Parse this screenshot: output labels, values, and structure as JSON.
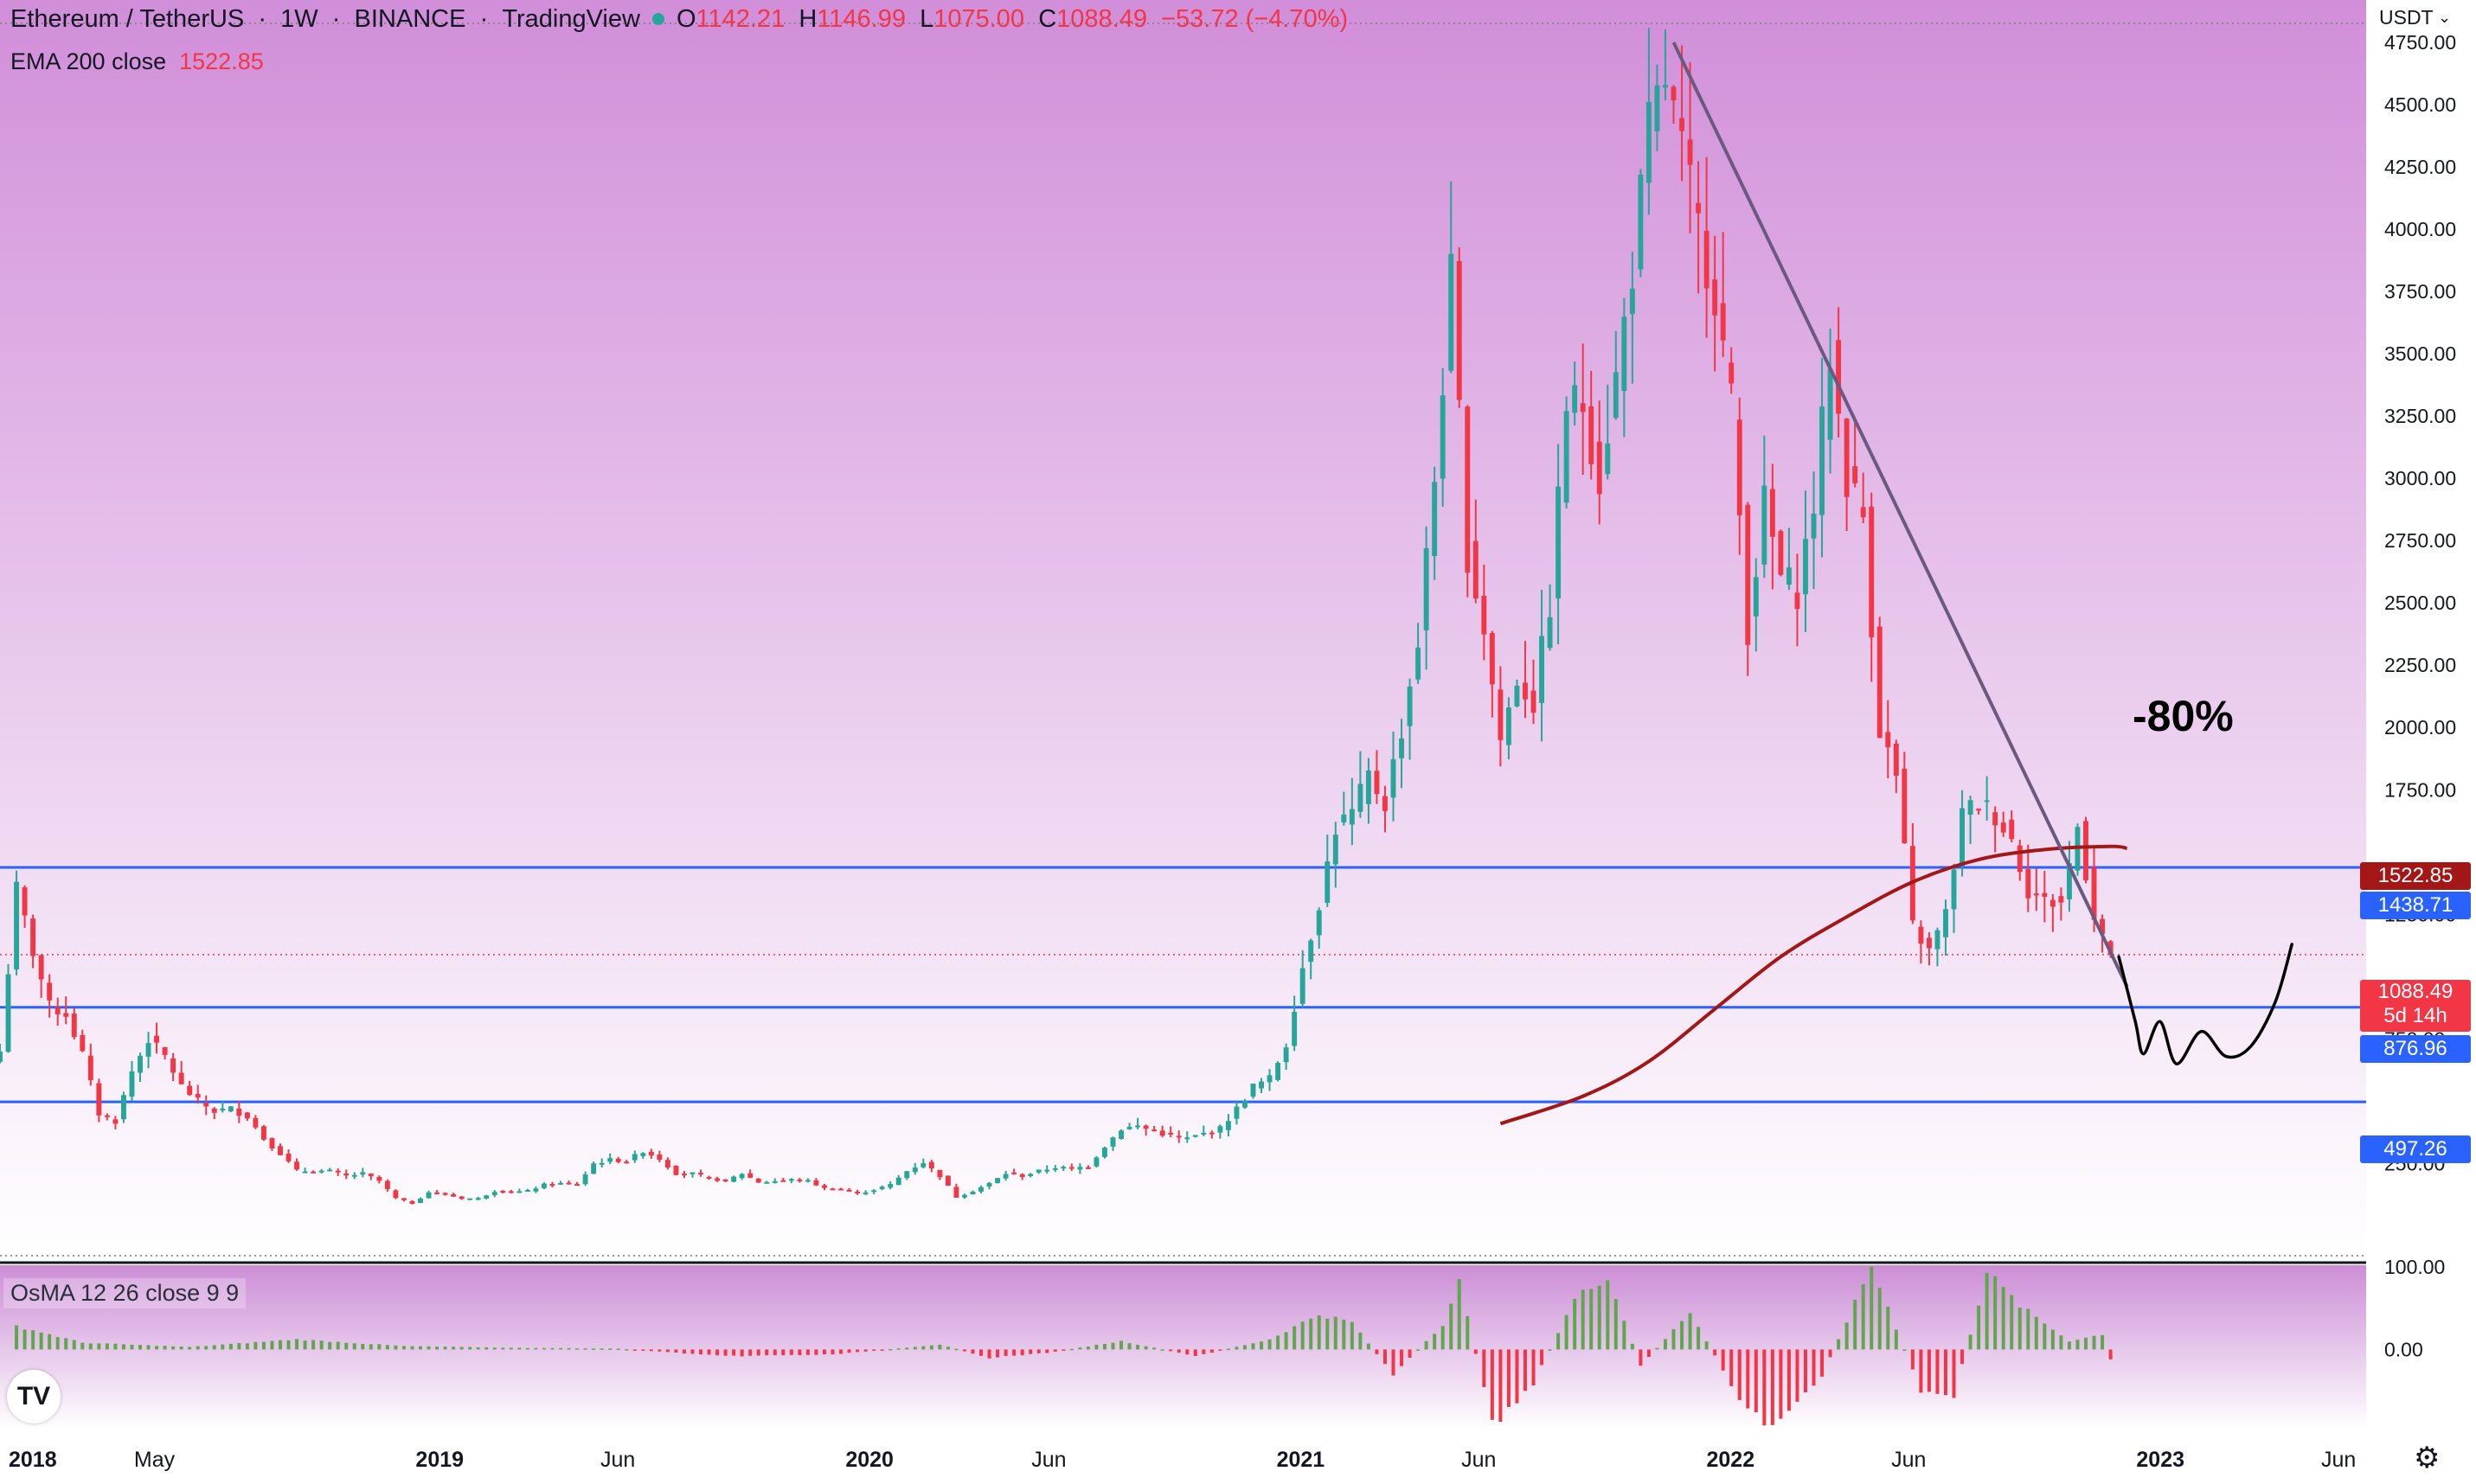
{
  "header": {
    "symbol": "Ethereum / TetherUS",
    "interval": "1W",
    "exchange": "BINANCE",
    "source": "TradingView",
    "open_label": "O",
    "open_value": "1142.21",
    "high_label": "H",
    "high_value": "1146.99",
    "low_label": "L",
    "low_value": "1075.00",
    "close_label": "C",
    "close_value": "1088.49",
    "change": "−53.72 (−4.70%)",
    "ema_label": "EMA 200 close",
    "ema_value": "1522.85"
  },
  "price_axis": {
    "currency": "USDT",
    "ticks": [
      "4750.00",
      "4500.00",
      "4250.00",
      "4000.00",
      "3750.00",
      "3500.00",
      "3250.00",
      "3000.00",
      "2750.00",
      "2500.00",
      "2250.00",
      "2000.00",
      "1750.00",
      "1250.00",
      "750.00",
      "250.00"
    ]
  },
  "time_axis": {
    "labels": [
      "2018",
      "May",
      "2019",
      "Jun",
      "2020",
      "Jun",
      "2021",
      "Jun",
      "2022",
      "Jun",
      "2023",
      "Jun"
    ],
    "bold": [
      "2018",
      "2019",
      "2020",
      "2021",
      "2022",
      "2023"
    ]
  },
  "price_labels": {
    "ema": "1522.85",
    "level_top": "1438.71",
    "current_price": "1088.49",
    "countdown": "5d 14h",
    "level_mid": "876.96",
    "level_low": "497.26"
  },
  "annotation": {
    "text": "-80%"
  },
  "osma": {
    "label": "OsMA 12 26 close 9 9",
    "ticks": [
      "100.00",
      "0.00"
    ]
  },
  "colors": {
    "up": "#26a69a",
    "down": "#f23645",
    "osma_up": "#5fa84a",
    "osma_down": "#f23645",
    "ema": "#a31717",
    "levels": "#2962ff",
    "trendline": "#6a5a80",
    "projection": "#000000",
    "bg_top": "#d18ed9",
    "bg_bottom": "#ffffff"
  },
  "icons": {
    "logo": "tradingview-logo-icon",
    "settings": "gear-icon",
    "indicator_dot": "status-dot-icon"
  },
  "chart_data": {
    "type": "candlestick",
    "title": "Ethereum / TetherUS",
    "interval": "1W",
    "ylabel": "USDT",
    "ylim": [
      -120,
      4920
    ],
    "xlim": [
      "2017-12-25",
      "2023-06-26"
    ],
    "grid": false,
    "current": {
      "open": 1142.21,
      "high": 1146.99,
      "low": 1075.0,
      "close": 1088.49
    },
    "weekly_close_path": [
      {
        "date": "2017-12-25",
        "close": 700
      },
      {
        "date": "2018-01-08",
        "close": 1350
      },
      {
        "date": "2018-01-22",
        "close": 1100
      },
      {
        "date": "2018-02-05",
        "close": 880
      },
      {
        "date": "2018-02-19",
        "close": 850
      },
      {
        "date": "2018-03-05",
        "close": 690
      },
      {
        "date": "2018-03-19",
        "close": 450
      },
      {
        "date": "2018-04-02",
        "close": 420
      },
      {
        "date": "2018-04-16",
        "close": 620
      },
      {
        "date": "2018-04-30",
        "close": 750
      },
      {
        "date": "2018-05-14",
        "close": 680
      },
      {
        "date": "2018-05-28",
        "close": 560
      },
      {
        "date": "2018-06-11",
        "close": 500
      },
      {
        "date": "2018-06-25",
        "close": 460
      },
      {
        "date": "2018-07-09",
        "close": 470
      },
      {
        "date": "2018-07-23",
        "close": 440
      },
      {
        "date": "2018-08-06",
        "close": 350
      },
      {
        "date": "2018-08-20",
        "close": 290
      },
      {
        "date": "2018-09-03",
        "close": 220
      },
      {
        "date": "2018-09-17",
        "close": 220
      },
      {
        "date": "2018-10-01",
        "close": 220
      },
      {
        "date": "2018-10-15",
        "close": 200
      },
      {
        "date": "2018-10-29",
        "close": 210
      },
      {
        "date": "2018-11-12",
        "close": 180
      },
      {
        "date": "2018-11-26",
        "close": 110
      },
      {
        "date": "2018-12-10",
        "close": 90
      },
      {
        "date": "2018-12-24",
        "close": 135
      },
      {
        "date": "2019-01-07",
        "close": 125
      },
      {
        "date": "2019-01-21",
        "close": 110
      },
      {
        "date": "2019-02-04",
        "close": 110
      },
      {
        "date": "2019-02-18",
        "close": 140
      },
      {
        "date": "2019-03-04",
        "close": 135
      },
      {
        "date": "2019-03-18",
        "close": 140
      },
      {
        "date": "2019-04-01",
        "close": 165
      },
      {
        "date": "2019-04-15",
        "close": 170
      },
      {
        "date": "2019-04-29",
        "close": 165
      },
      {
        "date": "2019-05-13",
        "close": 250
      },
      {
        "date": "2019-05-27",
        "close": 265
      },
      {
        "date": "2019-06-10",
        "close": 260
      },
      {
        "date": "2019-06-24",
        "close": 300
      },
      {
        "date": "2019-07-08",
        "close": 270
      },
      {
        "date": "2019-07-22",
        "close": 210
      },
      {
        "date": "2019-08-05",
        "close": 210
      },
      {
        "date": "2019-08-19",
        "close": 190
      },
      {
        "date": "2019-09-02",
        "close": 180
      },
      {
        "date": "2019-09-16",
        "close": 210
      },
      {
        "date": "2019-09-30",
        "close": 175
      },
      {
        "date": "2019-10-14",
        "close": 180
      },
      {
        "date": "2019-10-28",
        "close": 185
      },
      {
        "date": "2019-11-11",
        "close": 180
      },
      {
        "date": "2019-11-25",
        "close": 150
      },
      {
        "date": "2019-12-09",
        "close": 145
      },
      {
        "date": "2019-12-23",
        "close": 130
      },
      {
        "date": "2020-01-06",
        "close": 145
      },
      {
        "date": "2020-01-20",
        "close": 165
      },
      {
        "date": "2020-02-03",
        "close": 220
      },
      {
        "date": "2020-02-17",
        "close": 255
      },
      {
        "date": "2020-03-02",
        "close": 200
      },
      {
        "date": "2020-03-16",
        "close": 115
      },
      {
        "date": "2020-03-30",
        "close": 140
      },
      {
        "date": "2020-04-13",
        "close": 170
      },
      {
        "date": "2020-04-27",
        "close": 210
      },
      {
        "date": "2020-05-11",
        "close": 200
      },
      {
        "date": "2020-05-25",
        "close": 220
      },
      {
        "date": "2020-06-08",
        "close": 235
      },
      {
        "date": "2020-06-22",
        "close": 230
      },
      {
        "date": "2020-07-06",
        "close": 240
      },
      {
        "date": "2020-07-20",
        "close": 320
      },
      {
        "date": "2020-08-03",
        "close": 390
      },
      {
        "date": "2020-08-17",
        "close": 400
      },
      {
        "date": "2020-08-31",
        "close": 380
      },
      {
        "date": "2020-09-14",
        "close": 360
      },
      {
        "date": "2020-09-28",
        "close": 350
      },
      {
        "date": "2020-10-12",
        "close": 370
      },
      {
        "date": "2020-10-26",
        "close": 390
      },
      {
        "date": "2020-11-09",
        "close": 470
      },
      {
        "date": "2020-11-23",
        "close": 560
      },
      {
        "date": "2020-12-07",
        "close": 590
      },
      {
        "date": "2020-12-21",
        "close": 730
      },
      {
        "date": "2021-01-04",
        "close": 1040
      },
      {
        "date": "2021-01-18",
        "close": 1300
      },
      {
        "date": "2021-02-01",
        "close": 1600
      },
      {
        "date": "2021-02-15",
        "close": 1650
      },
      {
        "date": "2021-03-01",
        "close": 1800
      },
      {
        "date": "2021-03-15",
        "close": 1700
      },
      {
        "date": "2021-03-29",
        "close": 2000
      },
      {
        "date": "2021-04-12",
        "close": 2350
      },
      {
        "date": "2021-04-26",
        "close": 3000
      },
      {
        "date": "2021-05-10",
        "close": 3800
      },
      {
        "date": "2021-05-24",
        "close": 2700
      },
      {
        "date": "2021-06-07",
        "close": 2400
      },
      {
        "date": "2021-06-21",
        "close": 1950
      },
      {
        "date": "2021-07-05",
        "close": 2200
      },
      {
        "date": "2021-07-19",
        "close": 2100
      },
      {
        "date": "2021-08-02",
        "close": 2500
      },
      {
        "date": "2021-08-16",
        "close": 3300
      },
      {
        "date": "2021-08-30",
        "close": 3300
      },
      {
        "date": "2021-09-13",
        "close": 3000
      },
      {
        "date": "2021-09-27",
        "close": 3400
      },
      {
        "date": "2021-10-11",
        "close": 3850
      },
      {
        "date": "2021-10-25",
        "close": 4400
      },
      {
        "date": "2021-11-08",
        "close": 4600
      },
      {
        "date": "2021-11-22",
        "close": 4300
      },
      {
        "date": "2021-12-06",
        "close": 4000
      },
      {
        "date": "2021-12-20",
        "close": 3750
      },
      {
        "date": "2022-01-03",
        "close": 3300
      },
      {
        "date": "2022-01-17",
        "close": 2400
      },
      {
        "date": "2022-01-31",
        "close": 2900
      },
      {
        "date": "2022-02-14",
        "close": 2600
      },
      {
        "date": "2022-02-28",
        "close": 2550
      },
      {
        "date": "2022-03-14",
        "close": 2900
      },
      {
        "date": "2022-03-28",
        "close": 3500
      },
      {
        "date": "2022-04-11",
        "close": 3000
      },
      {
        "date": "2022-04-25",
        "close": 2850
      },
      {
        "date": "2022-05-09",
        "close": 2000
      },
      {
        "date": "2022-05-23",
        "close": 1800
      },
      {
        "date": "2022-06-06",
        "close": 1200
      },
      {
        "date": "2022-06-20",
        "close": 1100
      },
      {
        "date": "2022-07-04",
        "close": 1250
      },
      {
        "date": "2022-07-18",
        "close": 1650
      },
      {
        "date": "2022-08-01",
        "close": 1700
      },
      {
        "date": "2022-08-15",
        "close": 1650
      },
      {
        "date": "2022-08-29",
        "close": 1550
      },
      {
        "date": "2022-09-12",
        "close": 1350
      },
      {
        "date": "2022-09-26",
        "close": 1300
      },
      {
        "date": "2022-10-10",
        "close": 1300
      },
      {
        "date": "2022-10-24",
        "close": 1600
      },
      {
        "date": "2022-11-07",
        "close": 1250
      },
      {
        "date": "2022-11-21",
        "close": 1088.49
      }
    ],
    "ema200": {
      "name": "EMA 200 close",
      "points": [
        {
          "date": "2021-06-21",
          "value": 410
        },
        {
          "date": "2021-08-30",
          "value": 520
        },
        {
          "date": "2021-10-25",
          "value": 660
        },
        {
          "date": "2021-12-20",
          "value": 870
        },
        {
          "date": "2022-02-14",
          "value": 1080
        },
        {
          "date": "2022-04-11",
          "value": 1240
        },
        {
          "date": "2022-06-06",
          "value": 1380
        },
        {
          "date": "2022-08-01",
          "value": 1470
        },
        {
          "date": "2022-09-26",
          "value": 1510
        },
        {
          "date": "2022-11-21",
          "value": 1522.85
        },
        {
          "date": "2022-12-05",
          "value": 1515
        }
      ]
    },
    "horizontal_levels": [
      1438.71,
      876.96,
      497.26
    ],
    "trendline": [
      {
        "date": "2021-11-15",
        "value": 4750
      },
      {
        "date": "2022-12-05",
        "value": 960
      }
    ],
    "projection": [
      {
        "date": "2022-11-28",
        "value": 1080
      },
      {
        "date": "2022-12-12",
        "value": 820
      },
      {
        "date": "2022-12-19",
        "value": 690
      },
      {
        "date": "2023-01-02",
        "value": 820
      },
      {
        "date": "2023-01-16",
        "value": 650
      },
      {
        "date": "2023-02-06",
        "value": 780
      },
      {
        "date": "2023-02-27",
        "value": 680
      },
      {
        "date": "2023-03-20",
        "value": 720
      },
      {
        "date": "2023-04-10",
        "value": 900
      },
      {
        "date": "2023-04-24",
        "value": 1130
      }
    ],
    "osma": {
      "name": "OsMA 12 26 close 9 9",
      "ylim": [
        -95,
        100
      ],
      "values_path": [
        {
          "date": "2018-01-08",
          "value": 28
        },
        {
          "date": "2018-03-05",
          "value": 8
        },
        {
          "date": "2018-06-04",
          "value": 3
        },
        {
          "date": "2018-09-03",
          "value": 12
        },
        {
          "date": "2018-12-03",
          "value": 4
        },
        {
          "date": "2019-03-04",
          "value": 2
        },
        {
          "date": "2019-06-03",
          "value": 1
        },
        {
          "date": "2019-09-02",
          "value": -8
        },
        {
          "date": "2019-12-02",
          "value": -6
        },
        {
          "date": "2020-03-02",
          "value": 6
        },
        {
          "date": "2020-04-13",
          "value": -10
        },
        {
          "date": "2020-06-01",
          "value": -4
        },
        {
          "date": "2020-08-03",
          "value": 10
        },
        {
          "date": "2020-10-05",
          "value": -8
        },
        {
          "date": "2020-12-07",
          "value": 12
        },
        {
          "date": "2021-01-18",
          "value": 42
        },
        {
          "date": "2021-02-15",
          "value": 32
        },
        {
          "date": "2021-03-22",
          "value": -30
        },
        {
          "date": "2021-05-03",
          "value": 30
        },
        {
          "date": "2021-05-17",
          "value": 80
        },
        {
          "date": "2021-06-14",
          "value": -90
        },
        {
          "date": "2021-07-19",
          "value": -40
        },
        {
          "date": "2021-08-23",
          "value": 60
        },
        {
          "date": "2021-09-20",
          "value": 88
        },
        {
          "date": "2021-10-18",
          "value": -20
        },
        {
          "date": "2021-11-29",
          "value": 45
        },
        {
          "date": "2022-01-10",
          "value": -60
        },
        {
          "date": "2022-02-07",
          "value": -95
        },
        {
          "date": "2022-03-21",
          "value": -30
        },
        {
          "date": "2022-04-18",
          "value": 55
        },
        {
          "date": "2022-05-02",
          "value": 100
        },
        {
          "date": "2022-06-13",
          "value": -50
        },
        {
          "date": "2022-07-11",
          "value": -55
        },
        {
          "date": "2022-08-08",
          "value": 92
        },
        {
          "date": "2022-09-05",
          "value": 52
        },
        {
          "date": "2022-10-17",
          "value": 10
        },
        {
          "date": "2022-11-14",
          "value": 18
        },
        {
          "date": "2022-11-21",
          "value": -12
        }
      ]
    },
    "annotations": [
      "-80%"
    ]
  }
}
